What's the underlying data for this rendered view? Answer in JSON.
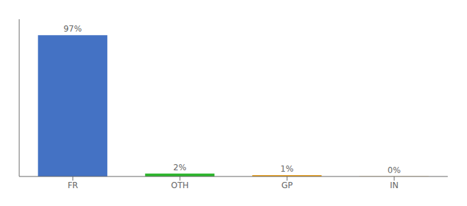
{
  "chart_data": {
    "type": "bar",
    "categories": [
      "FR",
      "OTH",
      "GP",
      "IN"
    ],
    "values": [
      97,
      2,
      1,
      0.1
    ],
    "value_labels": [
      "97%",
      "2%",
      "1%",
      "0%"
    ],
    "colors": [
      "#4472c4",
      "#2db52d",
      "#e8a020",
      "#e8a020"
    ],
    "ylim": [
      0,
      108
    ],
    "data_labels": true,
    "tick_labels": "x",
    "grid": false
  }
}
